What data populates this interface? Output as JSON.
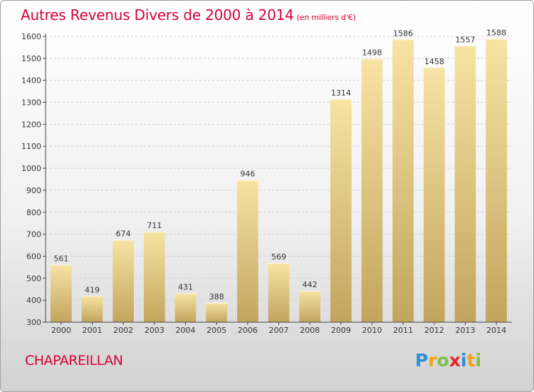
{
  "header": {
    "title": "Autres Revenus Divers de 2000 à 2014",
    "subtitle": "(en milliers d'€)"
  },
  "footer": {
    "commune": "CHAPAREILLAN",
    "logo_letters": [
      {
        "ch": "P",
        "color": "#2e8fd6"
      },
      {
        "ch": "r",
        "color": "#f2a11a"
      },
      {
        "ch": "o",
        "color": "#7cc242"
      },
      {
        "ch": "x",
        "color": "#e8262b"
      },
      {
        "ch": "i",
        "color": "#2e8fd6"
      },
      {
        "ch": "t",
        "color": "#f2a11a"
      },
      {
        "ch": "i",
        "color": "#7cc242"
      }
    ]
  },
  "chart_data": {
    "type": "bar",
    "title": "Autres Revenus Divers de 2000 à 2014",
    "subtitle": "(en milliers d'€)",
    "categories": [
      "2000",
      "2001",
      "2002",
      "2003",
      "2004",
      "2005",
      "2006",
      "2007",
      "2008",
      "2009",
      "2010",
      "2011",
      "2012",
      "2013",
      "2014"
    ],
    "values": [
      561,
      419,
      674,
      711,
      431,
      388,
      946,
      569,
      442,
      1314,
      1498,
      1586,
      1458,
      1557,
      1588
    ],
    "ylim": [
      300,
      1600
    ],
    "yticks": [
      300,
      400,
      500,
      600,
      700,
      800,
      900,
      1000,
      1100,
      1200,
      1300,
      1400,
      1500,
      1600
    ],
    "grid": true,
    "colors": {
      "bar_top": "#f7e3a3",
      "bar_bottom": "#c2a55e",
      "grid": "#d0d0d0"
    }
  }
}
